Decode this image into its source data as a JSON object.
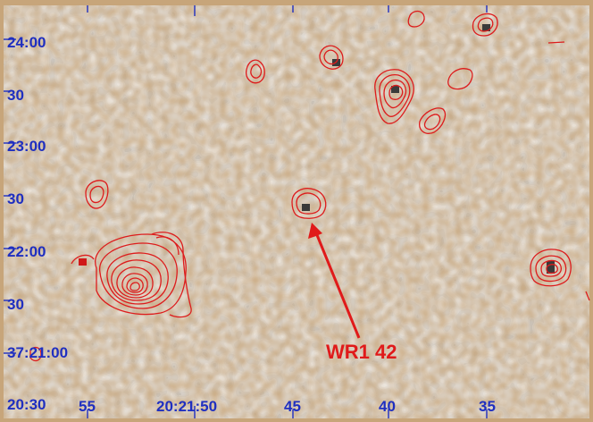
{
  "figure": {
    "y_ticks": [
      "24:00",
      "30",
      "23:00",
      "30",
      "22:00",
      "30",
      "37:21:00",
      "20:30"
    ],
    "x_ticks": [
      "55",
      "20:21:50",
      "45",
      "40",
      "35"
    ],
    "annotation": "WR1 42"
  },
  "colors": {
    "axis_text": "#1f2fc0",
    "contour": "#dd1c1c",
    "frame": "#b08a55",
    "annotation": "#e01a1a"
  }
}
